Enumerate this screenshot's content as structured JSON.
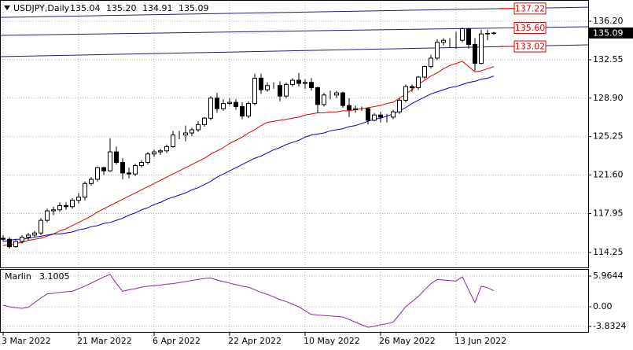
{
  "chart_data": {
    "type": "candlestick",
    "title": "USDJPY,Daily",
    "last_value_labels": [
      "135.04",
      "135.20",
      "134.91",
      "135.09"
    ],
    "categories": [
      "3 Mar 2022",
      null,
      null,
      null,
      null,
      null,
      null,
      null,
      null,
      null,
      null,
      null,
      "21 Mar 2022",
      null,
      null,
      null,
      null,
      null,
      null,
      null,
      null,
      null,
      null,
      null,
      "6 Apr 2022",
      null,
      null,
      null,
      null,
      null,
      null,
      null,
      null,
      null,
      null,
      null,
      "22 Apr 2022",
      null,
      null,
      null,
      null,
      null,
      null,
      null,
      null,
      null,
      null,
      null,
      "10 May 2022",
      null,
      null,
      null,
      null,
      null,
      null,
      null,
      null,
      null,
      null,
      null,
      "26 May 2022",
      null,
      null,
      null,
      null,
      null,
      null,
      null,
      null,
      null,
      null,
      null,
      "13 Jun 2022",
      null,
      null,
      null,
      null,
      null,
      null
    ],
    "open": [
      115.6,
      115.5,
      114.8,
      115.3,
      115.7,
      115.9,
      116.1,
      117.3,
      118.2,
      118.3,
      118.7,
      118.6,
      119.2,
      119.5,
      120.8,
      121.2,
      122.3,
      122.0,
      123.8,
      122.8,
      121.8,
      121.7,
      122.5,
      122.8,
      123.6,
      123.8,
      123.9,
      124.3,
      125.4,
      125.4,
      125.6,
      125.9,
      126.4,
      127.0,
      128.9,
      127.9,
      128.4,
      128.5,
      128.1,
      127.2,
      128.4,
      130.8,
      129.7,
      130.1,
      130.1,
      129.1,
      130.2,
      130.6,
      130.3,
      130.4,
      129.9,
      128.3,
      129.2,
      129.2,
      129.4,
      128.2,
      127.8,
      127.9,
      127.9,
      126.8,
      127.3,
      127.1,
      127.1,
      127.6,
      128.7,
      130.0,
      129.9,
      130.9,
      131.9,
      132.7,
      134.2,
      134.4,
      134.4,
      134.4,
      135.5,
      134.0,
      132.2,
      135.0,
      135.04
    ],
    "high": [
      115.9,
      115.7,
      115.5,
      115.9,
      116.1,
      116.3,
      117.5,
      118.4,
      118.6,
      119.0,
      119.0,
      119.4,
      119.9,
      121.0,
      121.4,
      122.4,
      122.4,
      125.1,
      124.3,
      123.2,
      122.3,
      122.7,
      123.0,
      123.8,
      124.0,
      124.1,
      124.5,
      125.8,
      125.8,
      126.3,
      126.1,
      126.7,
      127.1,
      129.1,
      129.4,
      128.8,
      128.9,
      128.8,
      128.5,
      128.6,
      131.2,
      131.2,
      130.4,
      130.4,
      130.5,
      130.4,
      130.8,
      131.3,
      130.7,
      130.8,
      130.0,
      129.4,
      129.6,
      129.6,
      129.5,
      128.9,
      128.2,
      128.1,
      128.0,
      127.5,
      127.6,
      127.4,
      127.8,
      128.9,
      130.2,
      130.2,
      131.0,
      132.0,
      133.0,
      134.5,
      134.6,
      134.6,
      135.2,
      135.6,
      135.6,
      134.6,
      135.4,
      135.4,
      135.2
    ],
    "low": [
      115.3,
      114.6,
      114.7,
      115.1,
      115.4,
      115.7,
      115.9,
      117.1,
      117.8,
      118.1,
      118.3,
      118.4,
      118.9,
      119.2,
      120.6,
      121.0,
      121.6,
      121.9,
      122.6,
      121.2,
      121.3,
      121.5,
      122.3,
      122.6,
      123.3,
      123.5,
      123.7,
      124.2,
      125.0,
      124.8,
      125.3,
      125.7,
      126.2,
      126.8,
      127.5,
      127.7,
      128.2,
      127.8,
      126.9,
      127.0,
      128.2,
      129.3,
      129.5,
      129.8,
      128.6,
      128.9,
      130.0,
      130.0,
      129.8,
      129.6,
      127.5,
      128.1,
      128.8,
      128.9,
      128.0,
      127.1,
      127.5,
      127.7,
      126.4,
      126.7,
      126.6,
      126.6,
      126.9,
      127.4,
      128.5,
      129.5,
      129.7,
      130.7,
      131.7,
      132.5,
      133.9,
      133.7,
      133.6,
      134.2,
      133.6,
      131.5,
      132.1,
      134.4,
      134.91
    ],
    "close": [
      115.5,
      114.8,
      115.3,
      115.7,
      115.9,
      116.1,
      117.3,
      118.2,
      118.3,
      118.7,
      118.6,
      119.2,
      119.5,
      120.8,
      121.2,
      122.3,
      122.0,
      123.8,
      122.8,
      121.8,
      121.7,
      122.5,
      122.8,
      123.6,
      123.8,
      123.9,
      124.3,
      125.4,
      125.4,
      125.6,
      125.9,
      126.4,
      127.0,
      128.9,
      127.9,
      128.4,
      128.5,
      128.1,
      127.2,
      128.4,
      130.8,
      129.7,
      130.1,
      130.1,
      129.1,
      130.2,
      130.6,
      130.3,
      130.4,
      129.9,
      128.3,
      129.2,
      129.2,
      129.4,
      128.2,
      127.8,
      127.9,
      127.9,
      126.8,
      127.3,
      127.1,
      127.1,
      127.6,
      128.7,
      130.0,
      129.9,
      130.9,
      131.9,
      132.7,
      134.2,
      134.4,
      134.4,
      134.4,
      135.5,
      134.0,
      132.2,
      135.0,
      135.05,
      135.09
    ],
    "up_color": "#ffffff",
    "down_color": "#000000",
    "wick_color": "#000000",
    "lines": [
      {
        "color": "#e00000",
        "values": [
          114.9,
          115.0,
          115.1,
          115.2,
          115.4,
          115.5,
          115.6,
          115.8,
          116.0,
          116.3,
          116.5,
          116.8,
          117.1,
          117.4,
          117.7,
          118.1,
          118.4,
          118.7,
          119.0,
          119.3,
          119.6,
          119.9,
          120.2,
          120.5,
          120.8,
          121.1,
          121.4,
          121.7,
          122.0,
          122.3,
          122.6,
          122.9,
          123.2,
          123.6,
          123.9,
          124.2,
          124.6,
          124.9,
          125.2,
          125.6,
          125.9,
          126.3,
          126.6,
          126.7,
          126.8,
          126.9,
          127.0,
          127.1,
          127.3,
          127.4,
          127.5,
          127.5,
          127.6,
          127.6,
          127.7,
          127.7,
          127.8,
          127.9,
          128.0,
          128.1,
          128.2,
          128.4,
          128.5,
          128.9,
          129.3,
          129.7,
          130.2,
          130.6,
          131.0,
          131.3,
          131.7,
          132.0,
          132.2,
          132.4,
          131.9,
          131.4,
          131.5,
          131.7,
          131.9
        ]
      },
      {
        "color": "#0000c8",
        "values": [
          115.3,
          115.4,
          115.5,
          115.5,
          115.6,
          115.7,
          115.8,
          115.9,
          116.0,
          116.0,
          116.1,
          116.2,
          116.4,
          116.5,
          116.7,
          116.8,
          117.0,
          117.1,
          117.3,
          117.5,
          117.8,
          118.0,
          118.3,
          118.5,
          118.8,
          119.0,
          119.3,
          119.5,
          119.7,
          119.9,
          120.2,
          120.4,
          120.7,
          121.0,
          121.4,
          121.7,
          122.0,
          122.3,
          122.6,
          122.9,
          123.2,
          123.4,
          123.7,
          124.0,
          124.2,
          124.5,
          124.7,
          124.9,
          125.2,
          125.4,
          125.5,
          125.6,
          125.8,
          125.9,
          126.0,
          126.2,
          126.3,
          126.5,
          126.7,
          126.9,
          127.0,
          127.2,
          127.4,
          127.7,
          128.0,
          128.4,
          128.7,
          129.0,
          129.3,
          129.5,
          129.7,
          129.9,
          130.0,
          130.2,
          130.4,
          130.5,
          130.7,
          130.8,
          131.0
        ]
      }
    ],
    "trend_lines": [
      {
        "color": "#1c1c8c",
        "x": [
          -0.5,
          93
        ],
        "y": [
          136.57,
          137.54
        ],
        "label": "137.22"
      },
      {
        "color": "#1c1c8c",
        "x": [
          -0.5,
          93
        ],
        "y": [
          134.86,
          135.68
        ],
        "label": "135.60"
      },
      {
        "color": "#1c1c8c",
        "x": [
          -0.5,
          93
        ],
        "y": [
          132.84,
          133.96
        ],
        "label": "133.02"
      }
    ],
    "label_color": "#e00000",
    "ylim": [
      112.83,
      138.22
    ],
    "yticks": [
      {
        "value": 136.2,
        "label": "136.20"
      },
      132.55,
      {
        "value": 128.9,
        "label": "128.90"
      },
      125.25,
      {
        "value": 121.6,
        "label": "121.60"
      },
      117.95,
      114.25
    ],
    "grid": true,
    "indicator": {
      "name": "Marlin",
      "color": "#8a2a9e",
      "values": [
        0.3,
        0.0,
        -0.2,
        -0.3,
        -0.1,
        0.8,
        1.7,
        2.5,
        2.6,
        2.8,
        2.9,
        3.0,
        3.5,
        4.0,
        4.6,
        5.2,
        5.8,
        6.3,
        4.5,
        3.0,
        3.3,
        3.5,
        3.8,
        4.0,
        4.1,
        4.2,
        4.4,
        4.5,
        4.7,
        4.9,
        5.1,
        5.3,
        5.5,
        5.6,
        5.2,
        4.9,
        4.6,
        4.3,
        4.0,
        3.8,
        3.3,
        2.8,
        2.4,
        1.9,
        1.4,
        1.0,
        0.5,
        0.0,
        -0.8,
        -1.5,
        -1.6,
        -1.7,
        -1.8,
        -1.9,
        -2.0,
        -2.5,
        -3.0,
        -3.5,
        -4.0,
        -3.8,
        -3.5,
        -3.3,
        -3.0,
        -1.5,
        0.0,
        1.0,
        2.0,
        3.3,
        4.5,
        5.3,
        5.2,
        5.1,
        5.0,
        5.8,
        3.3,
        0.8,
        4.0,
        3.7,
        3.1005
      ],
      "ylim": [
        -5.05,
        7.19
      ],
      "yticks": [
        5.9644,
        {
          "value": 0,
          "label": "0.00"
        },
        -3.8324
      ]
    }
  }
}
